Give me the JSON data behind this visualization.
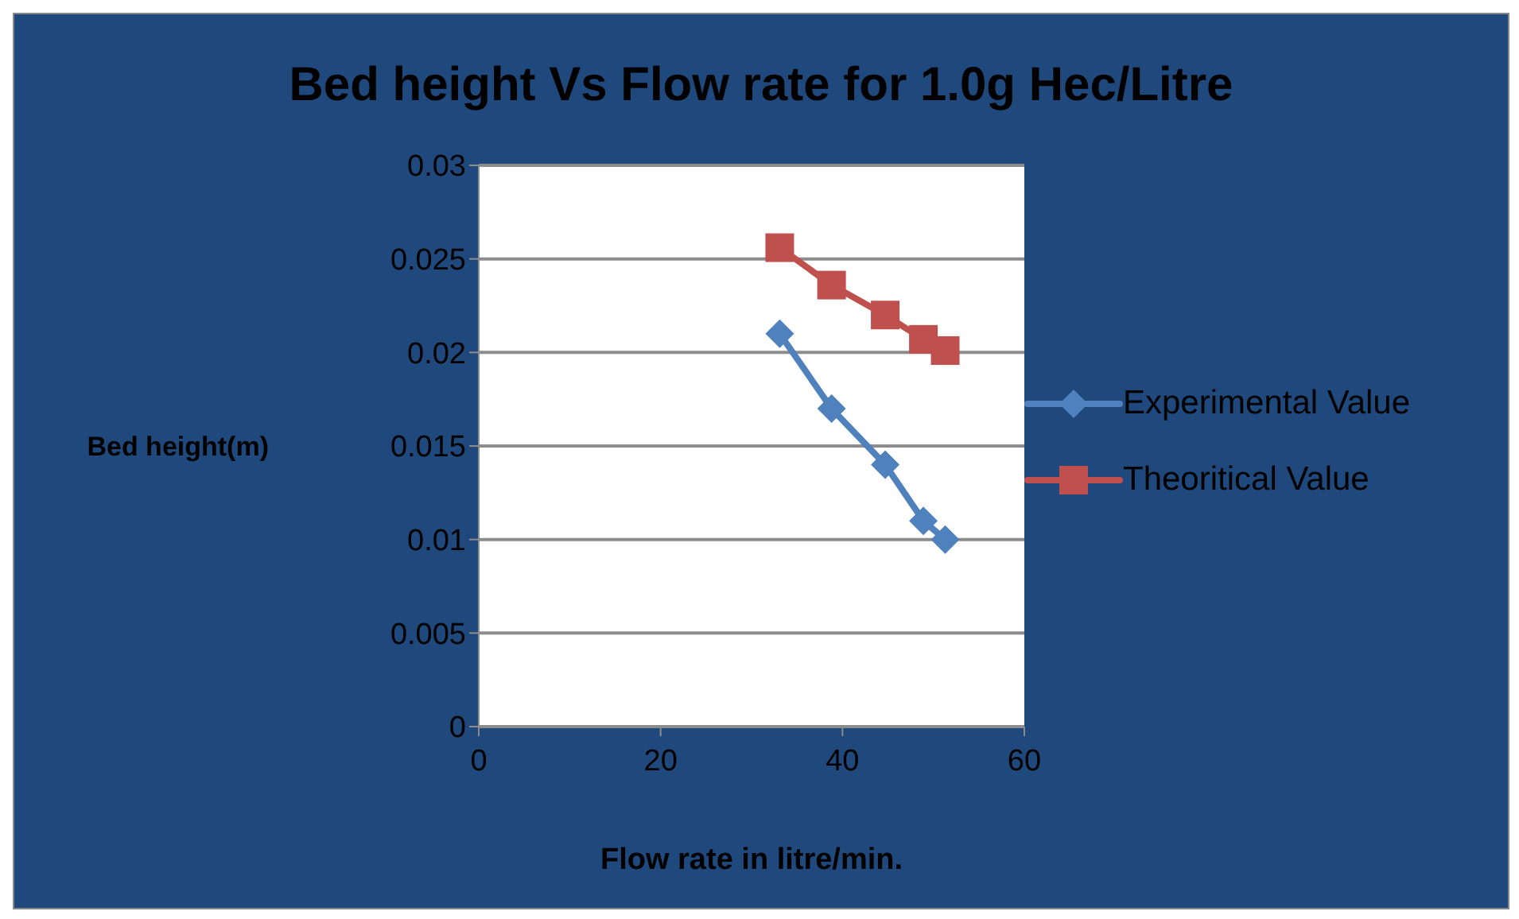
{
  "chart_data": {
    "type": "line",
    "title": "Bed height Vs Flow rate for 1.0g Hec/Litre",
    "xlabel": "Flow rate in litre/min.",
    "ylabel": "Bed height(m)",
    "series": [
      {
        "name": "Experimental Value",
        "color": "#4f81bd",
        "marker": "diamond",
        "x": [
          33.1,
          38.8,
          44.7,
          48.9,
          51.3
        ],
        "values": [
          0.021,
          0.017,
          0.014,
          0.011,
          0.01
        ]
      },
      {
        "name": "Theoritical Value",
        "color": "#c0504d",
        "marker": "square",
        "x": [
          33.1,
          38.8,
          44.7,
          48.9,
          51.3
        ],
        "values": [
          0.0256,
          0.0236,
          0.022,
          0.0207,
          0.0201
        ]
      }
    ],
    "xlim": [
      0,
      60
    ],
    "xticks": [
      0,
      20,
      40,
      60
    ],
    "ylim": [
      0,
      0.03
    ],
    "yticks": [
      0,
      0.005,
      0.01,
      0.015,
      0.02,
      0.025,
      0.03
    ],
    "grid": "y",
    "legend": "right"
  }
}
